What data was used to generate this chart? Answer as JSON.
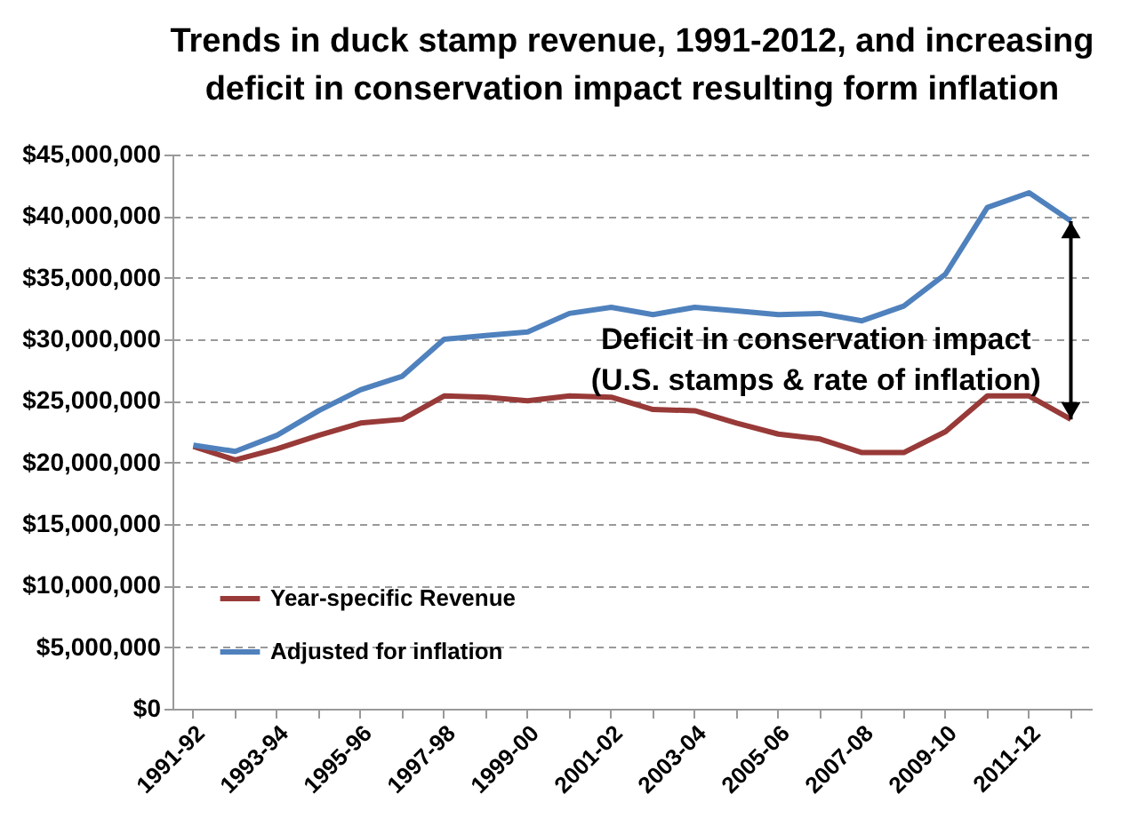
{
  "chart_data": {
    "type": "line",
    "title": "Trends in duck stamp revenue, 1991-2012, and increasing\ndeficit in conservation impact resulting form inflation",
    "categories": [
      "1991-92",
      null,
      "1993-94",
      null,
      "1995-96",
      null,
      "1997-98",
      null,
      "1999-00",
      null,
      "2001-02",
      null,
      "2003-04",
      null,
      "2005-06",
      null,
      "2007-08",
      null,
      "2009-10",
      null,
      "2011-12",
      null
    ],
    "series": [
      {
        "name": "Year-specific Revenue",
        "color": "#983a38",
        "values": [
          21300000,
          20200000,
          21100000,
          22200000,
          23200000,
          23500000,
          25400000,
          25300000,
          25000000,
          25400000,
          25300000,
          24300000,
          24200000,
          23200000,
          22300000,
          21900000,
          20800000,
          20800000,
          22500000,
          25400000,
          25400000,
          23500000
        ]
      },
      {
        "name": "Adjusted for inflation",
        "color": "#4f81bd",
        "values": [
          21400000,
          20900000,
          22200000,
          24200000,
          25900000,
          27000000,
          30000000,
          30300000,
          30600000,
          32100000,
          32600000,
          32000000,
          32600000,
          32300000,
          32000000,
          32100000,
          31500000,
          32700000,
          35300000,
          40700000,
          41900000,
          39600000
        ]
      }
    ],
    "ylim": [
      0,
      45000000
    ],
    "yticks": [
      {
        "value": 0,
        "label": "$0"
      },
      {
        "value": 5000000,
        "label": "$5,000,000"
      },
      {
        "value": 10000000,
        "label": "$10,000,000"
      },
      {
        "value": 15000000,
        "label": "$15,000,000"
      },
      {
        "value": 20000000,
        "label": "$20,000,000"
      },
      {
        "value": 25000000,
        "label": "$25,000,000"
      },
      {
        "value": 30000000,
        "label": "$30,000,000"
      },
      {
        "value": 35000000,
        "label": "$35,000,000"
      },
      {
        "value": 40000000,
        "label": "$40,000,000"
      },
      {
        "value": 45000000,
        "label": "$45,000,000"
      }
    ],
    "grid": "y",
    "legend": "bottom left",
    "marker": "none",
    "annotations": [
      "Deficit in conservation impact\n(U.S. stamps & rate of inflation)"
    ]
  }
}
